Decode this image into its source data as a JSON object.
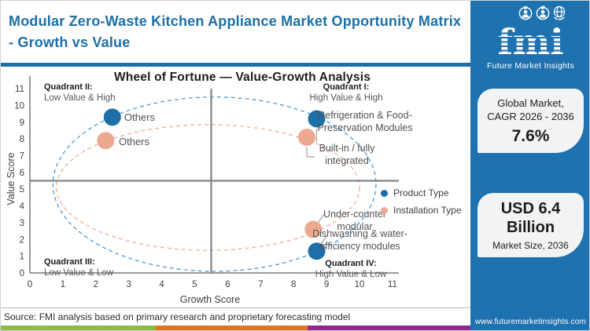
{
  "header": {
    "title": "Modular Zero-Waste Kitchen Appliance Market Opportunity Matrix - Growth vs Value"
  },
  "colors": {
    "brand_blue": "#1f72b0",
    "title_blue": "#1d6fa6",
    "bar_green": "#8cbb4a",
    "bar_orange": "#e0741f",
    "bar_purple": "#90278e"
  },
  "chart_data": {
    "type": "scatter",
    "title": "Wheel of Fortune — Value-Growth Analysis",
    "xlabel": "Growth Score",
    "ylabel": "Value Score",
    "xlim": [
      0,
      11
    ],
    "ylim": [
      0,
      11
    ],
    "x_ticks": [
      0,
      1,
      2,
      3,
      4,
      5,
      6,
      7,
      8,
      9,
      10,
      11
    ],
    "y_ticks": [
      0,
      1,
      2,
      3,
      4,
      5,
      6,
      7,
      8,
      9,
      10,
      11
    ],
    "grid": false,
    "legend_position": "right",
    "quadrant_divider": {
      "x": 5.5,
      "y": 5.5
    },
    "quadrants": {
      "q1": {
        "name": "Quadrant I:",
        "desc": "High Value & High"
      },
      "q2": {
        "name": "Quadrant II:",
        "desc": "Low Value & High"
      },
      "q3": {
        "name": "Quadrant III:",
        "desc": "Low Value & Low"
      },
      "q4": {
        "name": "Quadrant IV:",
        "desc": "High Value & Low"
      }
    },
    "series": [
      {
        "name": "Product Type",
        "color": "#1e6fa8",
        "wheel_ellipse": {
          "cx": 5.6,
          "cy": 5.3,
          "rx": 4.9,
          "ry": 5.2,
          "color": "#4f9ad1"
        },
        "points": [
          {
            "label": "Others",
            "x": 2.5,
            "y": 9.3
          },
          {
            "label": "Refrigeration & Food-Preservation Modules",
            "x": 8.7,
            "y": 9.2
          },
          {
            "label": "Dishwashing & water-efficiency modules",
            "x": 8.7,
            "y": 1.3
          }
        ]
      },
      {
        "name": "Installation Type",
        "color": "#eca98f",
        "wheel_ellipse": {
          "cx": 5.4,
          "cy": 5.1,
          "rx": 4.6,
          "ry": 3.75,
          "color": "#f0af98"
        },
        "points": [
          {
            "label": "Others",
            "x": 2.3,
            "y": 7.9
          },
          {
            "label": "Built-in / fully integrated",
            "x": 8.4,
            "y": 8.1
          },
          {
            "label": "Under-counter modular",
            "x": 8.6,
            "y": 2.6
          }
        ]
      }
    ]
  },
  "sidebar": {
    "logo": {
      "word": "fmi",
      "tagline": "Future Market Insights"
    },
    "cards": [
      {
        "title_line1": "Global Market,",
        "title_line2": "CAGR 2026 - 2036",
        "value": "7.6%"
      },
      {
        "value_line1": "USD 6.4",
        "value_line2": "Billion",
        "caption": "Market Size, 2036"
      }
    ],
    "website": "www.futuremarketinsights.com"
  },
  "footer": {
    "source": "Source: FMI analysis based on primary research and proprietary forecasting model"
  }
}
